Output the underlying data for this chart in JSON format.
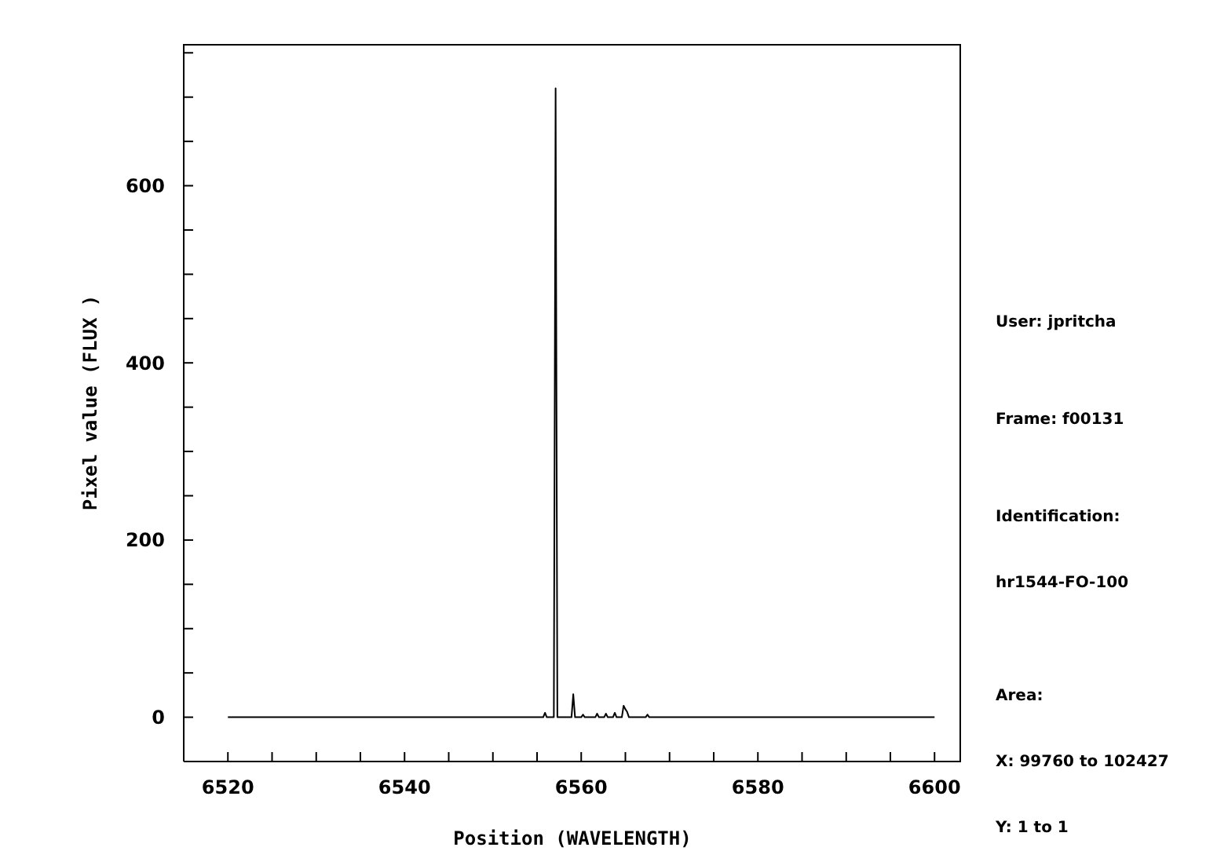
{
  "chart_data": {
    "type": "line",
    "xlabel": "Position (WAVELENGTH)",
    "ylabel": "Pixel value (FLUX )",
    "x": [
      6520,
      6545,
      6555.7,
      6555.9,
      6556.1,
      6556.9,
      6557.1,
      6557.3,
      6558.9,
      6559.1,
      6559.3,
      6560.0,
      6560.2,
      6560.4,
      6561.6,
      6561.8,
      6562.0,
      6562.6,
      6562.8,
      6563.0,
      6563.6,
      6563.8,
      6564.0,
      6564.6,
      6564.8,
      6565.0,
      6565.2,
      6565.4,
      6567.3,
      6567.5,
      6567.7,
      6600
    ],
    "series": [
      {
        "color": "#000000",
        "values": [
          0,
          0,
          0,
          5,
          0,
          0,
          710,
          0,
          0,
          26,
          0,
          0,
          3,
          0,
          0,
          4,
          0,
          0,
          4,
          0,
          0,
          5,
          0,
          0,
          13,
          9,
          6,
          0,
          0,
          3,
          0,
          0
        ]
      }
    ],
    "xlim": [
      6515,
      6603
    ],
    "xticks": [
      6520,
      {
        "value": 6525,
        "label": null
      },
      {
        "value": 6530,
        "label": null
      },
      {
        "value": 6535,
        "label": null
      },
      6540,
      {
        "value": 6545,
        "label": null
      },
      {
        "value": 6550,
        "label": null
      },
      {
        "value": 6555,
        "label": null
      },
      6560,
      {
        "value": 6565,
        "label": null
      },
      {
        "value": 6570,
        "label": null
      },
      {
        "value": 6575,
        "label": null
      },
      6580,
      {
        "value": 6585,
        "label": null
      },
      {
        "value": 6590,
        "label": null
      },
      {
        "value": 6595,
        "label": null
      },
      6600
    ],
    "ylim": [
      -50,
      760
    ],
    "yticks": [
      0,
      {
        "value": 50,
        "label": null
      },
      {
        "value": 100,
        "label": null
      },
      {
        "value": 150,
        "label": null
      },
      200,
      {
        "value": 250,
        "label": null
      },
      {
        "value": 300,
        "label": null
      },
      {
        "value": 350,
        "label": null
      },
      400,
      {
        "value": 450,
        "label": null
      },
      {
        "value": 500,
        "label": null
      },
      {
        "value": 550,
        "label": null
      },
      600,
      {
        "value": 650,
        "label": null
      },
      {
        "value": 700,
        "label": null
      },
      {
        "value": 750,
        "label": null
      }
    ],
    "marker": "none",
    "line_style": "solid",
    "annotations": [
      "User: jpritcha",
      "Frame: f00131",
      "Identification:",
      "hr1544-FO-100",
      "Area:",
      "X: 99760 to 102427",
      "Y: 1 to 1"
    ]
  }
}
